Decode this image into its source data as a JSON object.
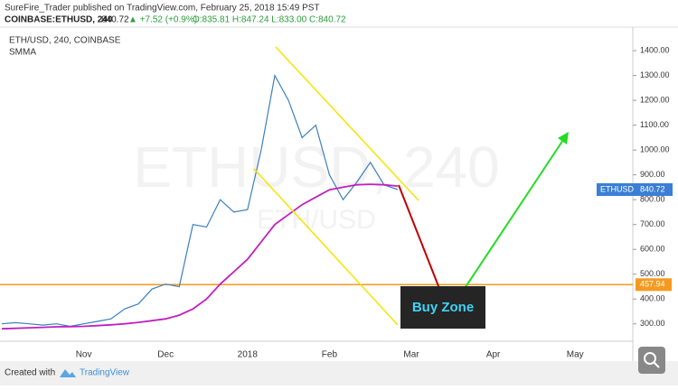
{
  "chart_data": {
    "type": "line",
    "header": "SureFire_Trader published on TradingView.com, February 25, 2018 15:49 PST",
    "quote_symbol": "COINBASE:ETHUSD, 240",
    "quote_price": "840.72",
    "quote_change": "▲ +7.52 (+0.9%)",
    "quote_ohlc": "O:835.81 H:847.24 L:833.00 C:840.72",
    "pane_title": "ETH/USD, 240, COINBASE",
    "indicator": "SMMA",
    "watermark": "ETHUSD, 240",
    "watermark_sub": "ETH/USD",
    "annotation": "Buy Zone",
    "footer_prefix": "Created with",
    "footer_brand": "TradingView",
    "symbol_badge": "ETHUSD",
    "last_price": 840.72,
    "hline": 457.94,
    "categories": [
      null,
      null,
      null,
      null,
      null,
      null,
      "Nov",
      null,
      null,
      null,
      null,
      null,
      "Dec",
      null,
      null,
      null,
      null,
      null,
      "2018",
      null,
      null,
      null,
      null,
      null,
      "Feb",
      null,
      null,
      null,
      null,
      null,
      "Mar",
      null,
      null,
      null,
      null,
      null,
      "Apr",
      null,
      null,
      null,
      null,
      null,
      "May",
      null,
      null,
      null
    ],
    "series": [
      {
        "name": "ETH/USD",
        "color": "#3d7fc0",
        "values": [
          300,
          305,
          300,
          295,
          300,
          290,
          300,
          310,
          320,
          360,
          380,
          440,
          460,
          450,
          700,
          690,
          800,
          750,
          760,
          1000,
          1300,
          1200,
          1050,
          1100,
          900,
          800,
          870,
          950,
          860,
          840.72,
          null,
          null,
          null,
          null,
          null,
          null,
          null,
          null,
          null,
          null,
          null,
          null,
          null,
          null,
          null,
          null
        ]
      },
      {
        "name": "SMMA",
        "color": "#c020c0",
        "values": [
          280,
          282,
          284,
          286,
          288,
          289,
          290,
          293,
          296,
          300,
          306,
          313,
          320,
          335,
          360,
          400,
          460,
          510,
          560,
          630,
          700,
          740,
          780,
          810,
          840,
          850,
          860,
          862,
          860,
          855,
          null,
          null,
          null,
          null,
          null,
          null,
          null,
          null,
          null,
          null,
          null,
          null,
          null,
          null,
          null,
          null
        ]
      }
    ],
    "ylim": [
      230,
      1495
    ],
    "yticks": [
      {
        "value": 300,
        "label": "300.00"
      },
      {
        "value": 400,
        "label": "400.00"
      },
      {
        "value": 500,
        "label": "500.00"
      },
      {
        "value": 600,
        "label": "600.00"
      },
      {
        "value": 700,
        "label": "700.00"
      },
      {
        "value": 800,
        "label": "800.00"
      },
      {
        "value": 900,
        "label": "900.00"
      },
      {
        "value": 1000,
        "label": "1000.00"
      },
      {
        "value": 1100,
        "label": "1100.00"
      },
      {
        "value": 1200,
        "label": "1200.00"
      },
      {
        "value": 1300,
        "label": "1300.00"
      },
      {
        "value": 1400,
        "label": "1400.00"
      }
    ],
    "grid": false
  }
}
